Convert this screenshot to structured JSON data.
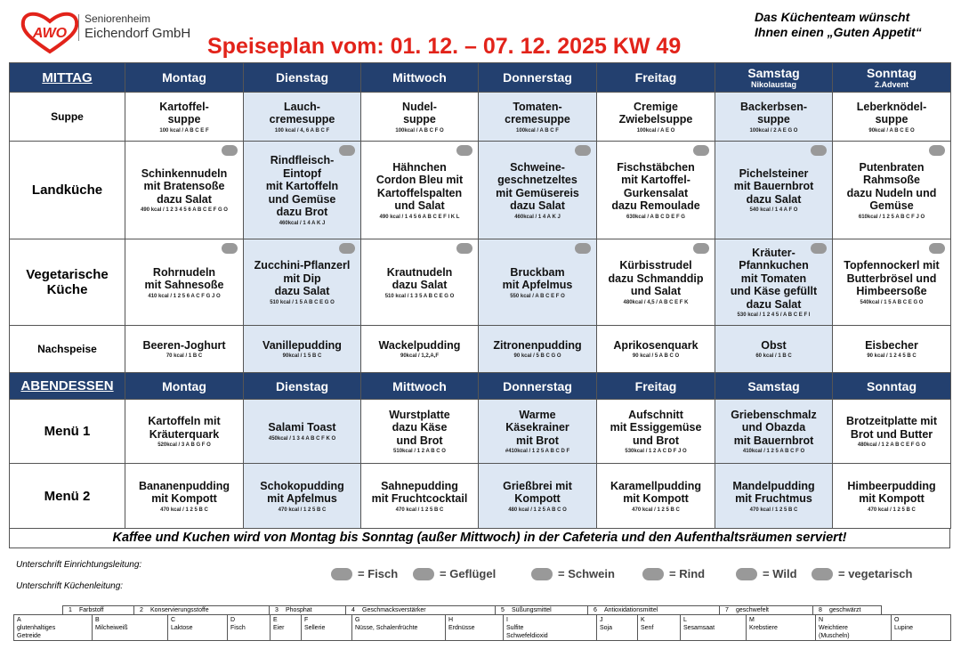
{
  "header": {
    "logo": "AWO",
    "org_line1": "Seniorenheim",
    "org_line2": "Eichendorf GmbH",
    "title": "Speiseplan vom: 01. 12. – 07. 12. 2025 KW 49",
    "greeting": "Das Küchenteam wünscht\nIhnen einen „Guten Appetit“"
  },
  "mittag": {
    "label": "MITTAG",
    "days": [
      {
        "name": "Montag"
      },
      {
        "name": "Dienstag"
      },
      {
        "name": "Mittwoch"
      },
      {
        "name": "Donnerstag"
      },
      {
        "name": "Freitag"
      },
      {
        "name": "Samstag",
        "sub": "Nikolaustag"
      },
      {
        "name": "Sonntag",
        "sub": "2.Advent"
      }
    ],
    "rows": [
      {
        "label": "Suppe",
        "cells": [
          {
            "dish": "Kartoffel-\nsuppe",
            "info": "100 kcal / A B C E F"
          },
          {
            "dish": "Lauch-\ncremesuppe",
            "info": "100 kcal / 4, 6 A B C F"
          },
          {
            "dish": "Nudel-\nsuppe",
            "info": "100kcal / A B C F O"
          },
          {
            "dish": "Tomaten-\ncremesuppe",
            "info": "100kcal / A B C F"
          },
          {
            "dish": "Cremige\nZwiebelsuppe",
            "info": "100kcal / A E O"
          },
          {
            "dish": "Backerbsen-\nsuppe",
            "info": "100kcal / 2 A E G O"
          },
          {
            "dish": "Leberknödel-\nsuppe",
            "info": "90kcal / A B C E O"
          }
        ]
      },
      {
        "label": "Landküche",
        "cells": [
          {
            "dish": "Schinkennudeln\nmit Bratensoße\ndazu Salat",
            "info": "490 kcal / 1 2 3 4 5 6 A B C E F G O"
          },
          {
            "dish": "Rindfleisch-\nEintopf\nmit Kartoffeln\nund Gemüse\ndazu Brot",
            "info": "460kcal / 1 4   A K J"
          },
          {
            "dish": "Hähnchen\nCordon Bleu mit\nKartoffelspalten\nund Salat",
            "info": "490 kcal / 1 4 5 6 A B C E F I K L"
          },
          {
            "dish": "Schweine-\ngeschnetzeltes\nmit Gemüsereis\ndazu Salat",
            "info": "460kcal / 1 4   A K J"
          },
          {
            "dish": "Fischstäbchen\nmit Kartoffel-\nGurkensalat\ndazu Remoulade",
            "info": "630kcal / A B C D E F G"
          },
          {
            "dish": "Pichelsteiner\nmit Bauernbrot\ndazu Salat",
            "info": "540 kcal / 1 4   A F O"
          },
          {
            "dish": "Putenbraten\nRahmsoße\ndazu Nudeln und\nGemüse",
            "info": "610kcal / 1 2 5 A B C F J O"
          }
        ]
      },
      {
        "label": "Vegetarische\nKüche",
        "cells": [
          {
            "dish": "Rohrnudeln\nmit Sahnesoße",
            "info": "410 kcal / 1 2 5 6 A C F G J O"
          },
          {
            "dish": "Zucchini-Pflanzerl\nmit Dip\ndazu Salat",
            "info": "510 kcal / 1 5 A B C E G O"
          },
          {
            "dish": "Krautnudeln\ndazu Salat",
            "info": "510 kcal / 1 3 5 A B C E G O"
          },
          {
            "dish": "Bruckbam\nmit Apfelmus",
            "info": "550 kcal / A B C E F O"
          },
          {
            "dish": "Kürbisstrudel\ndazu Schmanddip\nund Salat",
            "info": "480kcal / 4,5 / A B C E F K"
          },
          {
            "dish": "Kräuter-\nPfannkuchen\nmit Tomaten\nund Käse gefüllt\ndazu Salat",
            "info": "530 kcal / 1 2 4 5 / A B C E F I"
          },
          {
            "dish": "Topfennockerl  mit\nButterbrösel und\nHimbeersoße",
            "info": "540kcal / 1 5 A B C E G O"
          }
        ]
      },
      {
        "label": "Nachspeise",
        "cells": [
          {
            "dish": "Beeren-Joghurt",
            "info": "70 kcal / 1 B C"
          },
          {
            "dish": "Vanillepudding",
            "info": "90kcal / 1 5 B C"
          },
          {
            "dish": "Wackelpudding",
            "info": "90kcal / 1,2,A,F"
          },
          {
            "dish": "Zitronenpudding",
            "info": "90 kcal / 5 B C G O"
          },
          {
            "dish": "Aprikosenquark",
            "info": "90 kcal / 5 A B C O"
          },
          {
            "dish": "Obst",
            "info": "60 kcal / 1 B C"
          },
          {
            "dish": "Eisbecher",
            "info": "90 kcal / 1 2 4 5 B C"
          }
        ]
      }
    ]
  },
  "abend": {
    "label": "ABENDESSEN",
    "days": [
      {
        "name": "Montag"
      },
      {
        "name": "Dienstag"
      },
      {
        "name": "Mittwoch"
      },
      {
        "name": "Donnerstag"
      },
      {
        "name": "Freitag"
      },
      {
        "name": "Samstag"
      },
      {
        "name": "Sonntag"
      }
    ],
    "rows": [
      {
        "label": "Menü 1",
        "cells": [
          {
            "dish": "Kartoffeln  mit\nKräuterquark",
            "info": "520kcal / 3 A B G F O"
          },
          {
            "dish": "Salami Toast",
            "info": "450kcal / 1 3 4  A B C F K O"
          },
          {
            "dish": "Wurstplatte\ndazu Käse\nund Brot",
            "info": "510kcal / 1 2 A B C O"
          },
          {
            "dish": "Warme\nKäsekrainer\nmit Brot",
            "info": "#410kcal / 1 2 5 A B C D F"
          },
          {
            "dish": "Aufschnitt\nmit Essiggemüse\nund Brot",
            "info": "530kcal / 1 2 A C D F J O"
          },
          {
            "dish": "Griebenschmalz\nund Obazda\nmit Bauernbrot",
            "info": "410kcal / 1 2 5 A B C F O"
          },
          {
            "dish": "Brotzeitplatte  mit\nBrot und Butter",
            "info": "480kcal / 1 2 A B C E F G O"
          }
        ]
      },
      {
        "label": "Menü 2",
        "cells": [
          {
            "dish": "Bananenpudding\nmit Kompott",
            "info": "470 kcal / 1 2 5 B C"
          },
          {
            "dish": "Schokopudding\nmit Apfelmus",
            "info": "470 kcal / 1 2 5 B C"
          },
          {
            "dish": "Sahnepudding\nmit Fruchtcocktail",
            "info": "470 kcal / 1 2 5 B C"
          },
          {
            "dish": "Grießbrei mit\nKompott",
            "info": "480 kcal / 1 2 5 A B C O"
          },
          {
            "dish": "Karamellpudding\nmit Kompott",
            "info": "470 kcal / 1 2 5 B C"
          },
          {
            "dish": "Mandelpudding\nmit Fruchtmus",
            "info": "470 kcal / 1 2 5 B C"
          },
          {
            "dish": "Himbeerpudding\nmit Kompott",
            "info": "470 kcal / 1 2 5 B C"
          }
        ]
      }
    ]
  },
  "footer_note": "Kaffee und Kuchen wird von Montag bis Sonntag (außer Mittwoch) in der Cafeteria und den Aufenthaltsräumen serviert!",
  "signatures": [
    "Unterschrift Einrichtungsleitung:",
    "Unterschrift Küchenleitung:"
  ],
  "legend": [
    "= Fisch",
    "= Geflügel",
    "= Schwein",
    "= Rind",
    "= Wild",
    "= vegetarisch"
  ],
  "additives": [
    {
      "num": "1",
      "label": "Farbstoff"
    },
    {
      "num": "2",
      "label": "Konservierungsstoffe"
    },
    {
      "num": "3",
      "label": "Phosphat"
    },
    {
      "num": "4",
      "label": "Geschmacksverstärker"
    },
    {
      "num": "5",
      "label": "Süßungsmittel"
    },
    {
      "num": "6",
      "label": "Antioxidationsmittel"
    },
    {
      "num": "7",
      "label": "geschwefelt"
    },
    {
      "num": "8",
      "label": "geschwärzt"
    }
  ],
  "allergens": [
    {
      "code": "A",
      "label": "glutenhaltiges\nGetreide"
    },
    {
      "code": "B",
      "label": "Milcheiweiß"
    },
    {
      "code": "C",
      "label": "Laktose"
    },
    {
      "code": "D",
      "label": "Fisch"
    },
    {
      "code": "E",
      "label": "Eier"
    },
    {
      "code": "F",
      "label": "Sellerie"
    },
    {
      "code": "G",
      "label": "Nüsse, Schalenfrüchte"
    },
    {
      "code": "H",
      "label": "Erdnüsse"
    },
    {
      "code": "I",
      "label": "Sulfite\nSchwefeldioxid"
    },
    {
      "code": "J",
      "label": "Soja"
    },
    {
      "code": "K",
      "label": "Senf"
    },
    {
      "code": "L",
      "label": "Sesamsaat"
    },
    {
      "code": "M",
      "label": "Krebstiere"
    },
    {
      "code": "N",
      "label": "Weichtiere\n(Muscheln)"
    },
    {
      "code": "O",
      "label": "Lupine"
    }
  ]
}
